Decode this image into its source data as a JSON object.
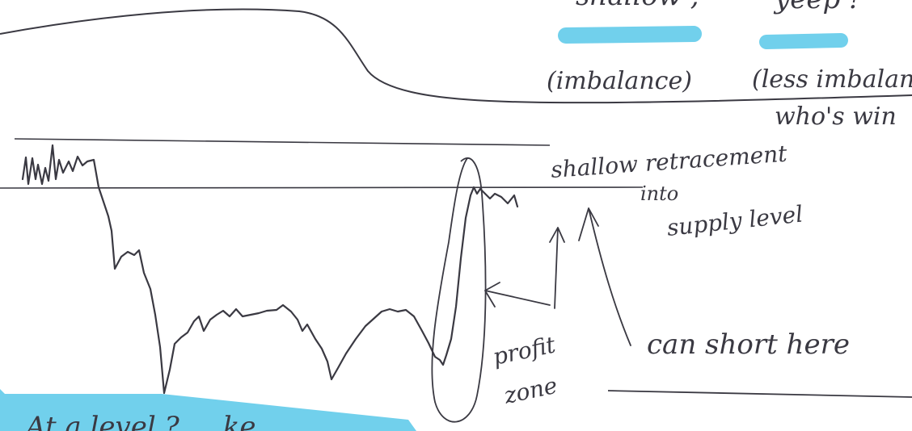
{
  "notes": {
    "top_left_partial": "shallow ,",
    "top_right_partial": "yeep !",
    "imbalance_label": "(imbalance)",
    "less_imbalance_label": "(less imbalan",
    "whos_winning_label": "who's  win",
    "shallow_retracement_label": "shallow retracement",
    "into_label": "into",
    "supply_level_label": "supply level",
    "profit_label": "profit",
    "zone_label": "zone",
    "can_short_here_label": "can short here",
    "bottom_partial": "At a level ? ... ke"
  },
  "colors": {
    "ink": "#3a3942",
    "highlighter": "#62cbea",
    "paper": "#ffffff"
  }
}
